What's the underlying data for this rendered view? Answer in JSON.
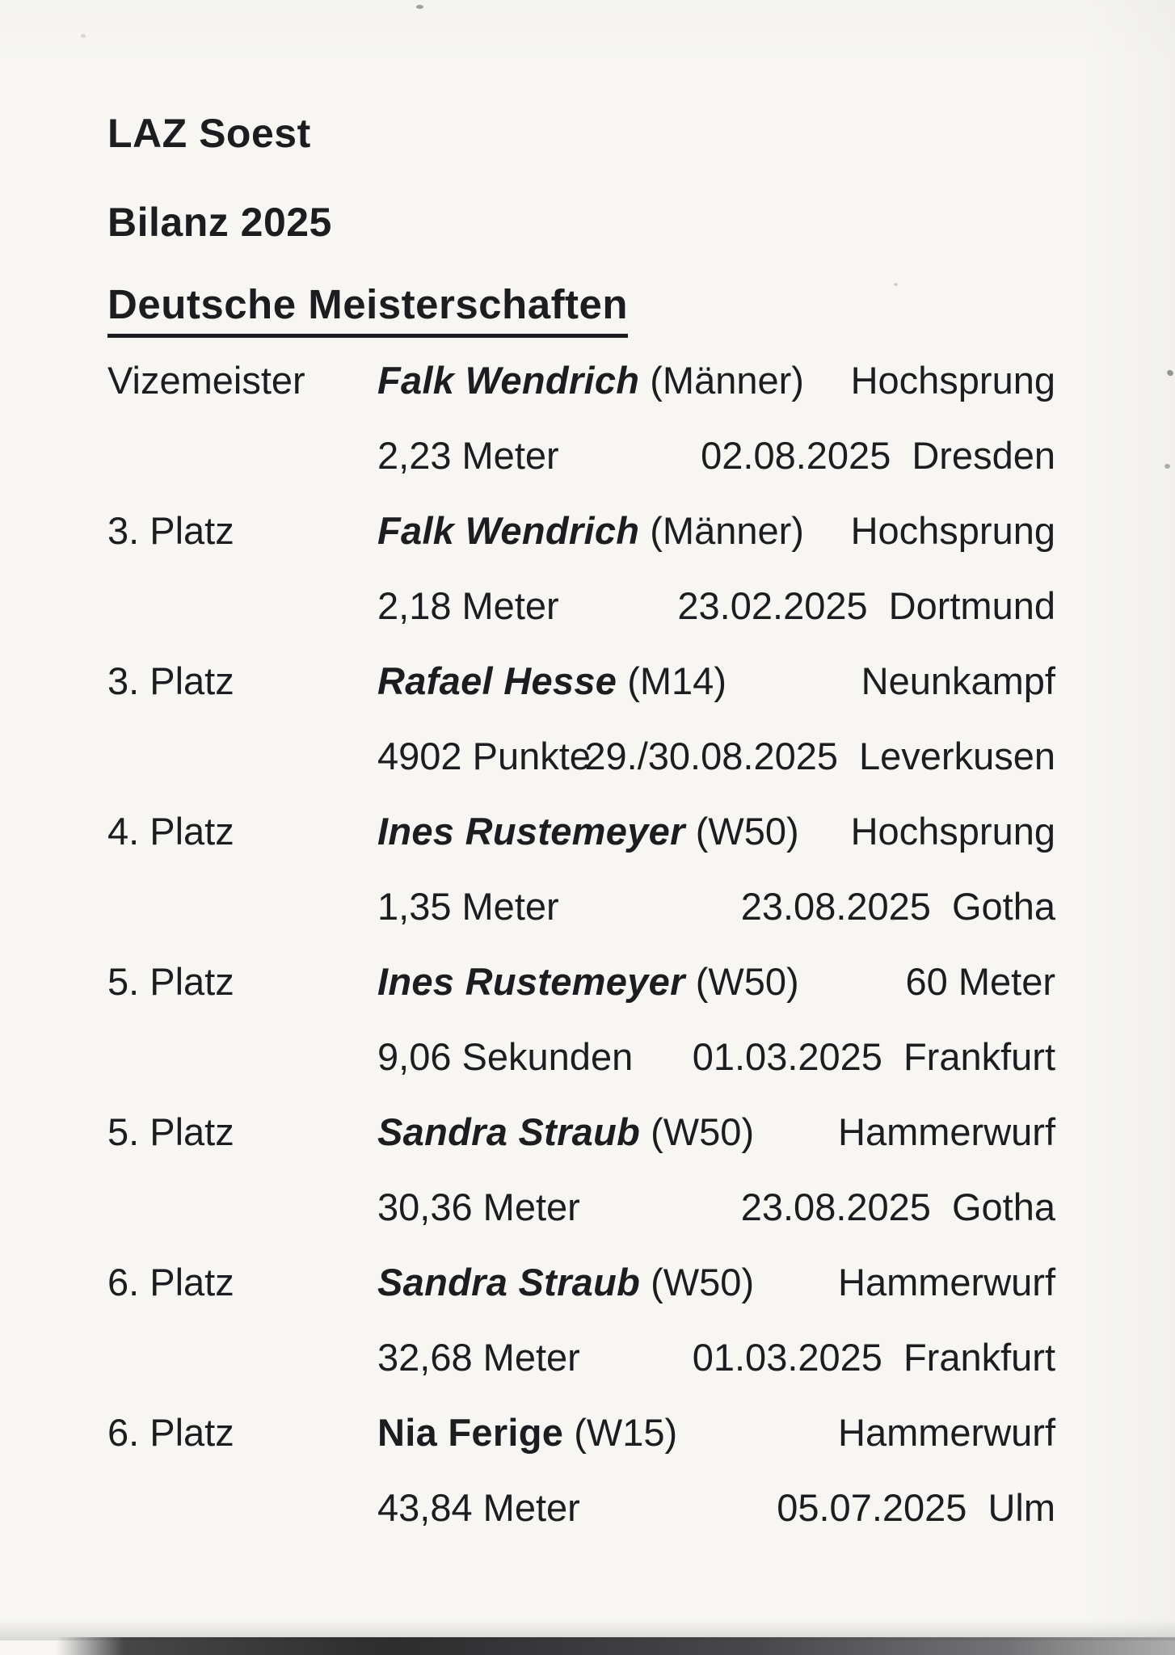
{
  "page": {
    "club": "LAZ Soest",
    "report_title": "Bilanz 2025",
    "section_heading": "Deutsche Meisterschaften"
  },
  "entries": [
    {
      "rank": "Vizemeister",
      "athlete": "Falk Wendrich",
      "category": "(Männer)",
      "discipline": "Hochsprung",
      "result": "2,23 Meter",
      "date": "02.08.2025",
      "location": "Dresden"
    },
    {
      "rank": "3. Platz",
      "athlete": "Falk Wendrich",
      "category": "(Männer)",
      "discipline": "Hochsprung",
      "result": "2,18 Meter",
      "date": "23.02.2025",
      "location": "Dortmund"
    },
    {
      "rank": "3. Platz",
      "athlete": "Rafael Hesse",
      "category": "(M14)",
      "discipline": "Neunkampf",
      "result": "4902 Punkte",
      "date": "29./30.08.2025",
      "location": "Leverkusen"
    },
    {
      "rank": "4. Platz",
      "athlete": "Ines Rustemeyer",
      "category": "(W50)",
      "discipline": "Hochsprung",
      "result": "1,35 Meter",
      "date": "23.08.2025",
      "location": "Gotha"
    },
    {
      "rank": "5. Platz",
      "athlete": "Ines Rustemeyer",
      "category": "(W50)",
      "discipline": "60 Meter",
      "result": "9,06 Sekunden",
      "date": "01.03.2025",
      "location": "Frankfurt"
    },
    {
      "rank": "5. Platz",
      "athlete": "Sandra Straub",
      "category": "(W50)",
      "discipline": "Hammerwurf",
      "result": "30,36 Meter",
      "date": "23.08.2025",
      "location": "Gotha"
    },
    {
      "rank": "6. Platz",
      "athlete": "Sandra Straub",
      "category": "(W50)",
      "discipline": "Hammerwurf",
      "result": "32,68 Meter",
      "date": "01.03.2025",
      "location": "Frankfurt"
    },
    {
      "rank": "6. Platz",
      "athlete": "Nia Ferige",
      "category": "(W15)",
      "discipline": "Hammerwurf",
      "result": "43,84 Meter",
      "date": "05.07.2025",
      "location": "Ulm"
    }
  ],
  "colors": {
    "paper": "#f7f6f3",
    "ink": "#1d1d21",
    "scan_edge": "#2f2f2f"
  }
}
